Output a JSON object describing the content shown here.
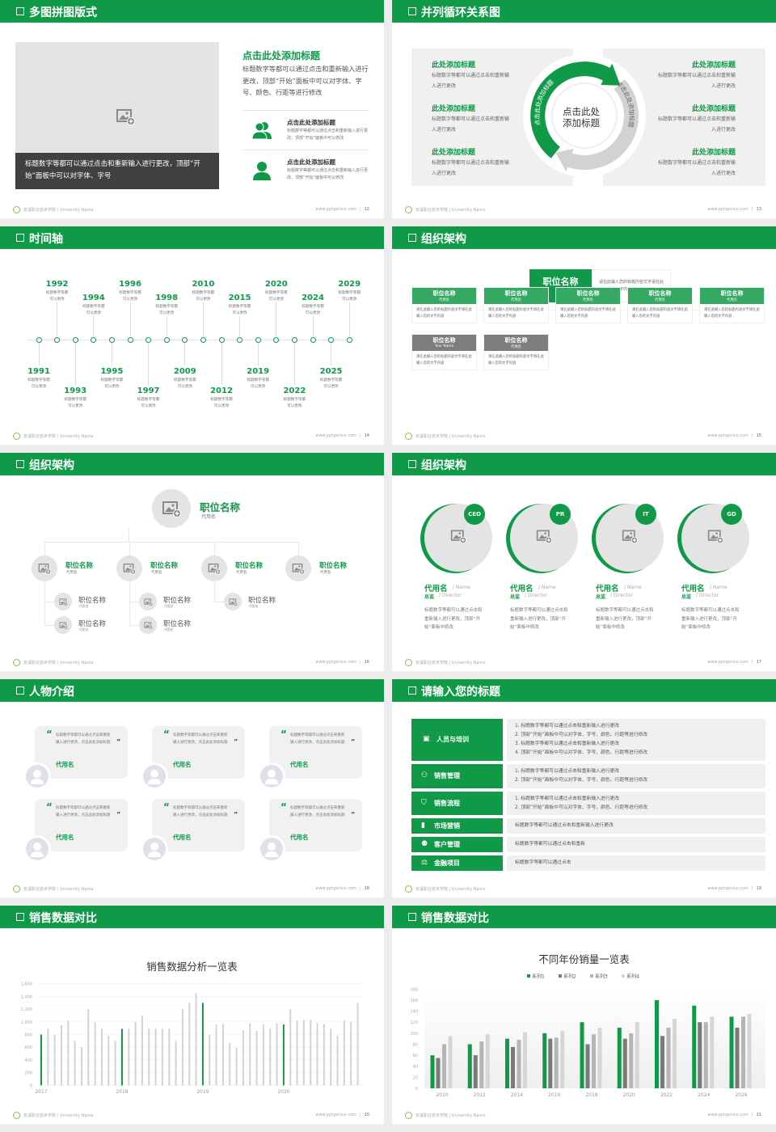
{
  "colors": {
    "brand_green": "#109a48",
    "dark_gray": "#404040",
    "panel_gray": "#f0f0f0",
    "series2": "#7a7a7a",
    "series3": "#b5b5b5",
    "series4": "#d6d6d6"
  },
  "footer": {
    "school": "安溪职业技术学院 | University Name",
    "site": "www.pptgenius.com"
  },
  "slides": [
    {
      "title": "多图拼图版式",
      "page": "12",
      "image_icon": "image-add-icon",
      "caption": "标题数字等都可以通过点击和重新输入进行更改，顶部“开始”面板中可以对字体、字号",
      "heading": "点击此处添加标题",
      "body": "标题数字等都可以通过点击和重新输入进行更改，顶部“开始”面板中可以对字体、字号、颜色、行距等进行修改",
      "items": [
        {
          "icon": "users-icon",
          "title": "点击此处添加标题",
          "text": "标题数字等都可以通过点击和重新输入进行更改，顶部“开始”面板中可以修改"
        },
        {
          "icon": "user-icon",
          "title": "点击此处添加标题",
          "text": "标题数字等都可以通过点击和重新输入进行更改，顶部“开始”面板中可以修改"
        }
      ]
    },
    {
      "title": "并列循环关系图",
      "page": "13",
      "center": "点击此处添加标题",
      "arc_left": "点击此处添加标题",
      "arc_right": "点击此处添加标题",
      "left_items": [
        {
          "title": "此处添加标题",
          "text": "标题数字等都可以通过点击和重新输入进行更改"
        },
        {
          "title": "此处添加标题",
          "text": "标题数字等都可以通过点击和重新输入进行更改"
        },
        {
          "title": "此处添加标题",
          "text": "标题数字等都可以通过点击和重新输入进行更改"
        }
      ],
      "right_items": [
        {
          "title": "此处添加标题",
          "text": "标题数字等都可以通过点击和重新输入进行更改"
        },
        {
          "title": "此处添加标题",
          "text": "标题数字等都可以通过点击和重新输入进行更改"
        },
        {
          "title": "此处添加标题",
          "text": "标题数字等都可以通过点击和重新输入进行更改"
        }
      ]
    },
    {
      "title": "时间轴",
      "page": "14",
      "events": [
        {
          "year": "1991",
          "text": "标题数字等都可以更改"
        },
        {
          "year": "1992",
          "text": "标题数字等都可以更改"
        },
        {
          "year": "1993",
          "text": "标题数字等都可以更改"
        },
        {
          "year": "1994",
          "text": "标题数字等都可以更改"
        },
        {
          "year": "1995",
          "text": "标题数字等都可以更改"
        },
        {
          "year": "1996",
          "text": "标题数字等都可以更改"
        },
        {
          "year": "1997",
          "text": "标题数字等都可以更改"
        },
        {
          "year": "1998",
          "text": "标题数字等都可以更改"
        },
        {
          "year": "2009",
          "text": "标题数字等都可以更改"
        },
        {
          "year": "2010",
          "text": "标题数字等都可以更改"
        },
        {
          "year": "2012",
          "text": "标题数字等都可以更改"
        },
        {
          "year": "2015",
          "text": "标题数字等都可以更改"
        },
        {
          "year": "2019",
          "text": "标题数字等都可以更改"
        },
        {
          "year": "2020",
          "text": "标题数字等都可以更改"
        },
        {
          "year": "2022",
          "text": "标题数字等都可以更改"
        },
        {
          "year": "2024",
          "text": "标题数字等都可以更改"
        },
        {
          "year": "2025",
          "text": "标题数字等都可以更改"
        },
        {
          "year": "2029",
          "text": "标题数字等都可以更改"
        }
      ]
    },
    {
      "title": "组织架构",
      "page": "15",
      "top": {
        "title": "职位名称",
        "sub": "代用名",
        "text": "请在此输入您的标题内容文字请在此输入您的文字内容"
      },
      "nodes": [
        {
          "title": "职位名称",
          "sub": "代用名",
          "text": "请在此输入您的标题内容文字请在此输入您的文字内容",
          "style": "green"
        },
        {
          "title": "职位名称",
          "sub": "代用名",
          "text": "请在此输入您的标题内容文字请在此输入您的文字内容",
          "style": "green"
        },
        {
          "title": "职位名称",
          "sub": "代用名",
          "text": "请在此输入您的标题内容文字请在此输入您的文字内容",
          "style": "green"
        },
        {
          "title": "职位名称",
          "sub": "代用名",
          "text": "请在此输入您的标题内容文字请在此输入您的文字内容",
          "style": "green"
        },
        {
          "title": "职位名称",
          "sub": "代用名",
          "text": "请在此输入您的标题内容文字请在此输入您的文字内容",
          "style": "green"
        },
        {
          "title": "职位名称",
          "sub": "Your Name",
          "text": "请在此输入您的标题内容文字请在此输入您的文字内容",
          "style": "gray"
        },
        {
          "title": "职位名称",
          "sub": "代用名",
          "text": "请在此输入您的标题内容文字请在此输入您的文字内容",
          "style": "gray"
        }
      ]
    },
    {
      "title": "组织架构",
      "page": "16",
      "top": {
        "title": "职位名称",
        "sub": "代用名"
      },
      "columns": [
        {
          "title": "职位名称",
          "sub": "代用名",
          "children": [
            {
              "title": "职位名称",
              "sub": "代用名"
            },
            {
              "title": "职位名称",
              "sub": "代用名"
            }
          ]
        },
        {
          "title": "职位名称",
          "sub": "代用名",
          "children": [
            {
              "title": "职位名称",
              "sub": "代用名"
            },
            {
              "title": "职位名称",
              "sub": "代用名"
            }
          ]
        },
        {
          "title": "职位名称",
          "sub": "代用名",
          "children": [
            {
              "title": "职位名称",
              "sub": "代用名"
            }
          ]
        },
        {
          "title": "职位名称",
          "sub": "代用名",
          "children": []
        }
      ]
    },
    {
      "title": "组织架构",
      "page": "17",
      "people": [
        {
          "badge": "CEO",
          "name": "代用名",
          "name_en": "/ Name",
          "role": "总监",
          "role_en": "/ Director",
          "text": "标题数字等都可以通过点击和重新输入进行更改，顶部“开始”面板中修改"
        },
        {
          "badge": "PR",
          "name": "代用名",
          "name_en": "/ Name",
          "role": "总监",
          "role_en": "/ Director",
          "text": "标题数字等都可以通过点击和重新输入进行更改，顶部“开始”面板中修改"
        },
        {
          "badge": "IT",
          "name": "代用名",
          "name_en": "/ Name",
          "role": "总监",
          "role_en": "/ Director",
          "text": "标题数字等都可以通过点击和重新输入进行更改，顶部“开始”面板中修改"
        },
        {
          "badge": "GD",
          "name": "代用名",
          "name_en": "/ Name",
          "role": "总监",
          "role_en": "/ Director",
          "text": "标题数字等都可以通过点击和重新输入进行更改，顶部“开始”面板中修改"
        }
      ]
    },
    {
      "title": "人物介绍",
      "page": "18",
      "quotes": [
        {
          "text": "标题数字等都可以通过点击和重新输入进行更改，点击此处添加标题",
          "name": "代用名"
        },
        {
          "text": "标题数字等都可以通过点击和重新输入进行更改，点击此处添加标题",
          "name": "代用名"
        },
        {
          "text": "标题数字等都可以通过点击和重新输入进行更改，点击此处添加标题",
          "name": "代用名"
        },
        {
          "text": "标题数字等都可以通过点击和重新输入进行更改，点击此处添加标题",
          "name": "代用名"
        },
        {
          "text": "标题数字等都可以通过点击和重新输入进行更改，点击此处添加标题",
          "name": "代用名"
        },
        {
          "text": "标题数字等都可以通过点击和重新输入进行更改，点击此处添加标题",
          "name": "代用名"
        }
      ]
    },
    {
      "title": "请输入您的标题",
      "page": "19",
      "rows": [
        {
          "icon": "training-icon",
          "label": "人员与培训",
          "lines": [
            "1.  标题数字等都可以通过点击和重新输入进行更改",
            "2.  顶部“开始”面板中可以对字体、字号、颜色、行距等进行修改",
            "3.  标题数字等都可以通过点击和重新输入进行更改",
            "4.  顶部“开始”面板中可以对字体、字号、颜色、行距等进行修改"
          ]
        },
        {
          "icon": "sales-manager-icon",
          "label": "销售管理",
          "lines": [
            "1.  标题数字等都可以通过点击和重新输入进行更改",
            "2.  顶部“开始”面板中可以对字体、字号、颜色、行距等进行修改"
          ]
        },
        {
          "icon": "shield-icon",
          "label": "销售流程",
          "lines": [
            "1.  标题数字等都可以通过点击和重新输入进行更改",
            "2.  顶部“开始”面板中可以对字体、字号、颜色、行距等进行修改"
          ]
        },
        {
          "icon": "bar-chart-icon",
          "label": "市场营销",
          "lines": [
            "标题数字等都可以通过点击和重新输入进行更改"
          ]
        },
        {
          "icon": "customers-icon",
          "label": "客户管理",
          "lines": [
            "标题数字等都可以通过点击和重新"
          ]
        },
        {
          "icon": "finance-icon",
          "label": "金融项目",
          "lines": [
            "标题数字等都可以通过点击"
          ]
        }
      ]
    },
    {
      "title": "销售数据对比",
      "page": "20"
    },
    {
      "title": "销售数据对比",
      "page": "21"
    }
  ],
  "chart_data": [
    {
      "type": "bar",
      "title": "销售数据分析一览表",
      "ylim": [
        0,
        1600
      ],
      "yticks": [
        "0",
        "200",
        "400",
        "600",
        "800",
        "1,000",
        "1,200",
        "1,400",
        "1,600"
      ],
      "xlabels": [
        "2017",
        "2018",
        "2019",
        "2020"
      ],
      "grid": true,
      "highlight_every": 12,
      "values": [
        800,
        900,
        800,
        950,
        1020,
        700,
        600,
        1200,
        990,
        900,
        780,
        700,
        890,
        900,
        1000,
        1100,
        900,
        900,
        890,
        900,
        700,
        1200,
        1300,
        1450,
        1300,
        800,
        960,
        970,
        670,
        590,
        870,
        980,
        860,
        960,
        900,
        980,
        960,
        1200,
        1020,
        1030,
        1030,
        980,
        970,
        900,
        780,
        1020,
        1000,
        1300
      ]
    },
    {
      "type": "bar",
      "title": "不同年份销量一览表",
      "ylim": [
        0,
        180
      ],
      "legend": "top",
      "yticks": [
        "0",
        "20",
        "40",
        "60",
        "80",
        "100",
        "120",
        "140",
        "160",
        "180"
      ],
      "categories": [
        "2010",
        "2012",
        "2014",
        "2016",
        "2018",
        "2020",
        "2022",
        "2024",
        "2026"
      ],
      "series": [
        {
          "name": "系列1",
          "values": [
            60,
            80,
            90,
            100,
            120,
            110,
            160,
            150,
            130
          ]
        },
        {
          "name": "系列2",
          "values": [
            55,
            60,
            75,
            90,
            80,
            90,
            95,
            120,
            110
          ]
        },
        {
          "name": "系列3",
          "values": [
            80,
            85,
            88,
            92,
            98,
            100,
            110,
            120,
            130
          ]
        },
        {
          "name": "系列4",
          "values": [
            95,
            98,
            102,
            104,
            110,
            120,
            126,
            130,
            135
          ]
        }
      ]
    }
  ]
}
